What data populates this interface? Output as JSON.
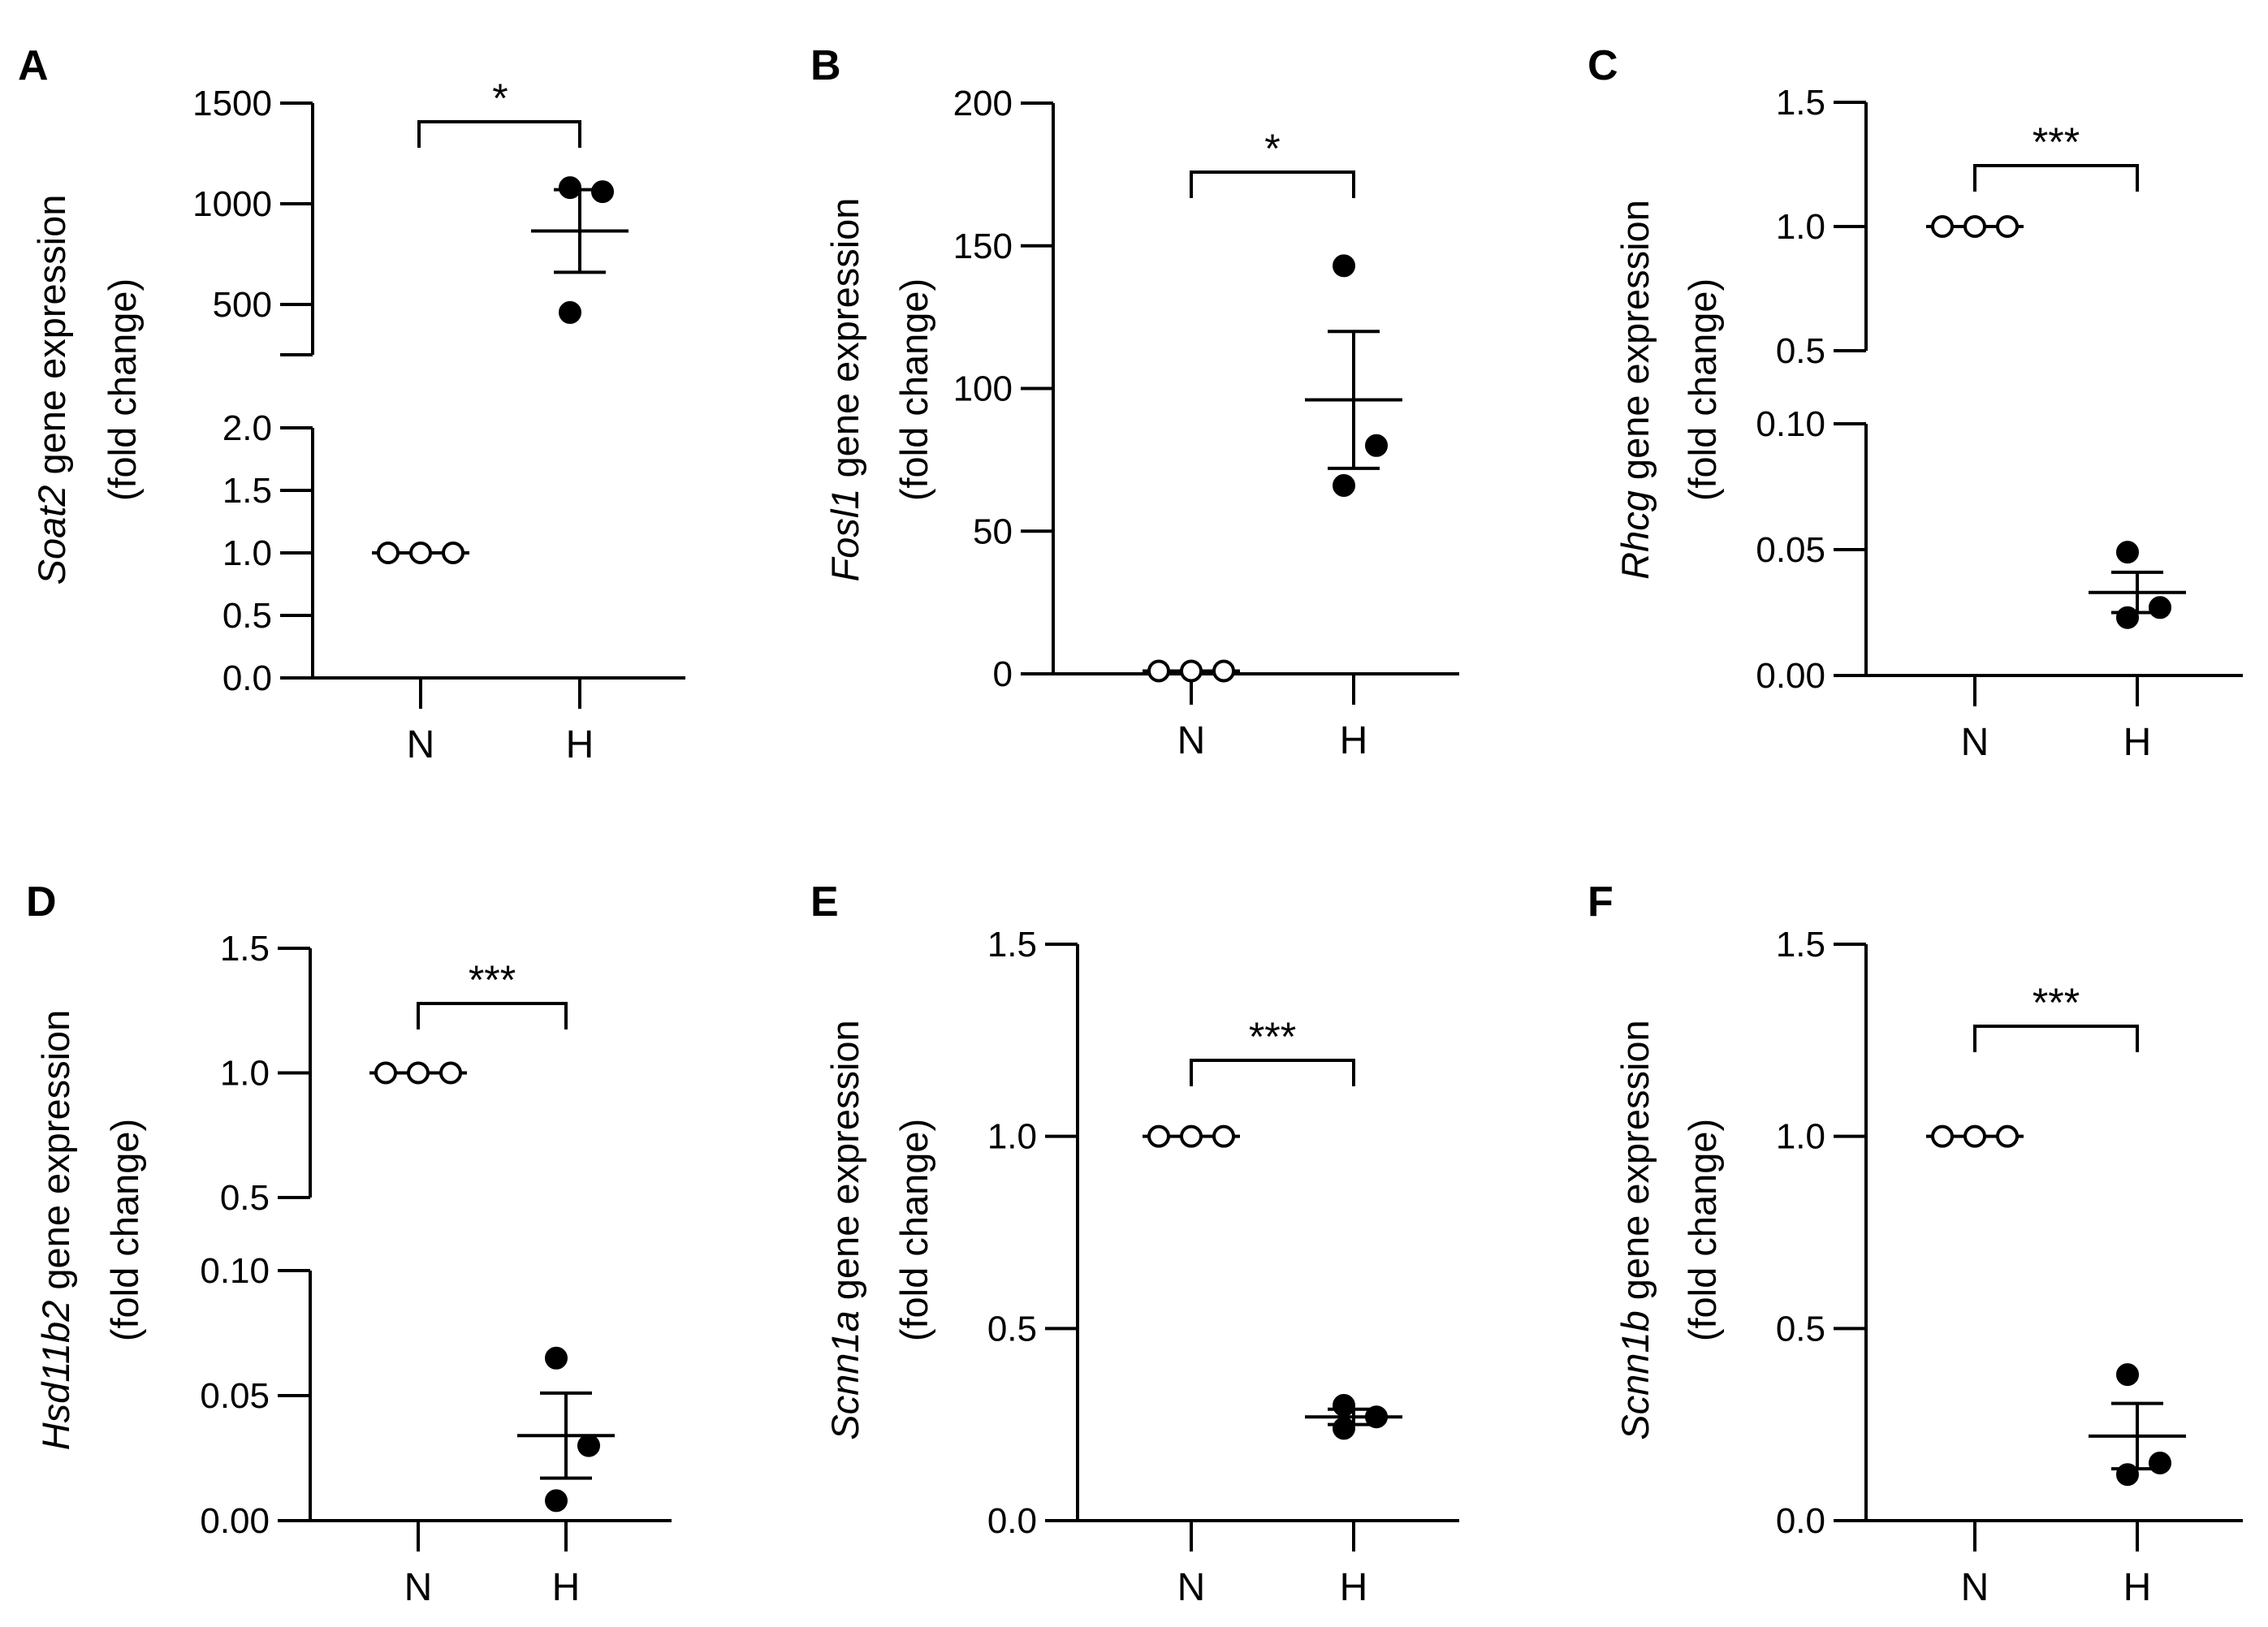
{
  "chart_data": [
    {
      "panel": "A",
      "type": "scatter",
      "gene": "Soat2",
      "ylabel_suffix": " gene expression",
      "ylabel_line2": "(fold change)",
      "categories": [
        "N",
        "H"
      ],
      "broken_axis": true,
      "lower": {
        "ylim": [
          0,
          2.0
        ],
        "ticks": [
          "0.0",
          "0.5",
          "1.0",
          "1.5",
          "2.0"
        ]
      },
      "upper": {
        "ylim": [
          250,
          1500
        ],
        "ticks": [
          "500",
          "1000",
          "1500"
        ]
      },
      "series": [
        {
          "name": "N",
          "points": [
            1.0,
            1.0,
            1.0
          ],
          "fill": "open",
          "mean": 1.0,
          "sem": 0
        },
        {
          "name": "H",
          "points": [
            1080,
            1060,
            460
          ],
          "fill": "filled",
          "mean": 865,
          "sem": 205
        }
      ],
      "significance": "*"
    },
    {
      "panel": "B",
      "type": "scatter",
      "gene": "Fosl1",
      "ylabel_suffix": " gene expression",
      "ylabel_line2": "(fold change)",
      "categories": [
        "N",
        "H"
      ],
      "broken_axis": false,
      "ylim": [
        0,
        200
      ],
      "ticks": [
        "0",
        "50",
        "100",
        "150",
        "200"
      ],
      "series": [
        {
          "name": "N",
          "points": [
            1,
            1,
            1
          ],
          "fill": "open",
          "mean": 1,
          "sem": 0
        },
        {
          "name": "H",
          "points": [
            143,
            80,
            66
          ],
          "fill": "filled",
          "mean": 96,
          "sem": 24
        }
      ],
      "significance": "*"
    },
    {
      "panel": "C",
      "type": "scatter",
      "gene": "Rhcg",
      "ylabel_suffix": " gene expression",
      "ylabel_line2": "(fold change)",
      "categories": [
        "N",
        "H"
      ],
      "broken_axis": true,
      "lower": {
        "ylim": [
          0,
          0.1
        ],
        "ticks": [
          "0.00",
          "0.05",
          "0.10"
        ]
      },
      "upper": {
        "ylim": [
          0.5,
          1.5
        ],
        "ticks": [
          "0.5",
          "1.0",
          "1.5"
        ]
      },
      "series": [
        {
          "name": "N",
          "points": [
            1.0,
            1.0,
            1.0
          ],
          "fill": "open",
          "mean": 1.0,
          "sem": 0
        },
        {
          "name": "H",
          "points": [
            0.049,
            0.027,
            0.023
          ],
          "fill": "filled",
          "mean": 0.033,
          "sem": 0.008
        }
      ],
      "significance": "***"
    },
    {
      "panel": "D",
      "type": "scatter",
      "gene": "Hsd11b2",
      "ylabel_suffix": " gene expression",
      "ylabel_line2": "(fold change)",
      "categories": [
        "N",
        "H"
      ],
      "broken_axis": true,
      "lower": {
        "ylim": [
          0,
          0.1
        ],
        "ticks": [
          "0.00",
          "0.05",
          "0.10"
        ]
      },
      "upper": {
        "ylim": [
          0.5,
          1.5
        ],
        "ticks": [
          "0.5",
          "1.0",
          "1.5"
        ]
      },
      "series": [
        {
          "name": "N",
          "points": [
            1.0,
            1.0,
            1.0
          ],
          "fill": "open",
          "mean": 1.0,
          "sem": 0
        },
        {
          "name": "H",
          "points": [
            0.065,
            0.03,
            0.008
          ],
          "fill": "filled",
          "mean": 0.034,
          "sem": 0.017
        }
      ],
      "significance": "***"
    },
    {
      "panel": "E",
      "type": "scatter",
      "gene": "Scnn1a",
      "ylabel_suffix": " gene expression",
      "ylabel_line2": "(fold change)",
      "categories": [
        "N",
        "H"
      ],
      "broken_axis": false,
      "ylim": [
        0,
        1.5
      ],
      "ticks": [
        "0.0",
        "0.5",
        "1.0",
        "1.5"
      ],
      "series": [
        {
          "name": "N",
          "points": [
            1.0,
            1.0,
            1.0
          ],
          "fill": "open",
          "mean": 1.0,
          "sem": 0
        },
        {
          "name": "H",
          "points": [
            0.3,
            0.27,
            0.24
          ],
          "fill": "filled",
          "mean": 0.27,
          "sem": 0.02
        }
      ],
      "significance": "***"
    },
    {
      "panel": "F",
      "type": "scatter",
      "gene": "Scnn1b",
      "ylabel_suffix": " gene expression",
      "ylabel_line2": "(fold change)",
      "categories": [
        "N",
        "H"
      ],
      "broken_axis": false,
      "ylim": [
        0,
        1.5
      ],
      "ticks": [
        "0.0",
        "0.5",
        "1.0",
        "1.5"
      ],
      "series": [
        {
          "name": "N",
          "points": [
            1.0,
            1.0,
            1.0
          ],
          "fill": "open",
          "mean": 1.0,
          "sem": 0
        },
        {
          "name": "H",
          "points": [
            0.38,
            0.15,
            0.12
          ],
          "fill": "filled",
          "mean": 0.22,
          "sem": 0.085
        }
      ],
      "significance": "***"
    }
  ]
}
